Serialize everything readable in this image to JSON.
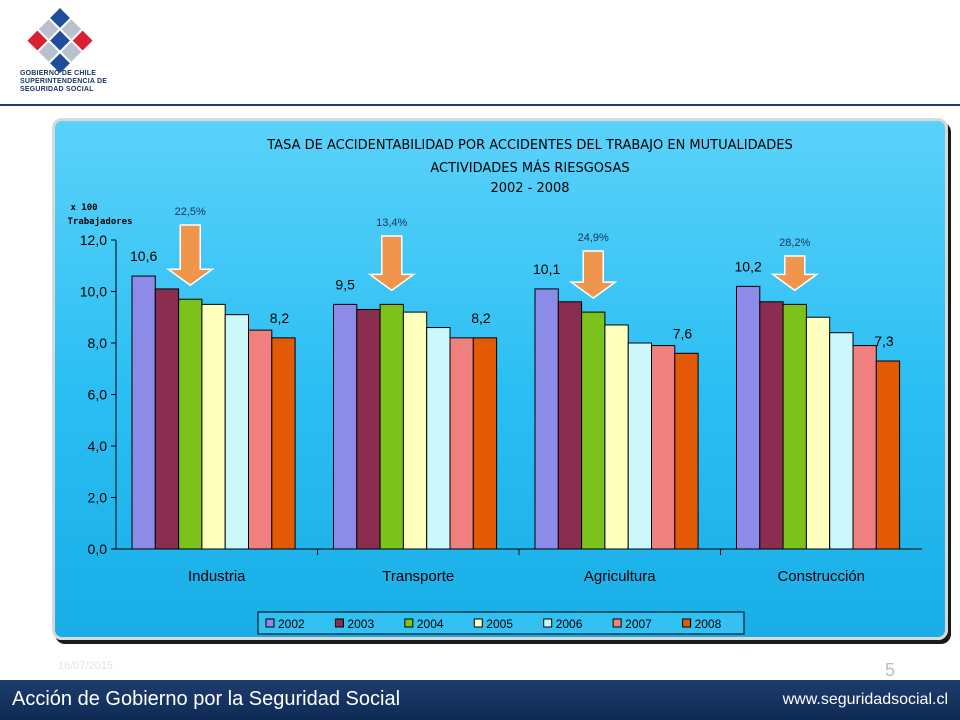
{
  "header": {
    "logo_lines": [
      "GOBIERNO DE CHILE",
      "SUPERINTENDENCIA DE",
      "SEGURIDAD SOCIAL"
    ]
  },
  "footer": {
    "date": "16/07/2015",
    "page_number": "5",
    "left_text": "Acción de Gobierno por la Seguridad Social",
    "right_text": "www.seguridadsocial.cl"
  },
  "colors": {
    "2002": "#8c8ce8",
    "2003": "#8b2d4f",
    "2004": "#7cc21a",
    "2005": "#ffffbe",
    "2006": "#ccf7fb",
    "2007": "#f08080",
    "2008": "#e25a05",
    "arrow": "#f0964c"
  },
  "chart_data": {
    "type": "bar",
    "title_lines": [
      "TASA DE ACCIDENTABILIDAD POR ACCIDENTES DEL TRABAJO EN MUTUALIDADES",
      "ACTIVIDADES MÁS RIESGOSAS",
      "2002 - 2008"
    ],
    "ylabel_lines": [
      "x 100",
      "Trabajadores"
    ],
    "categories": [
      "Industria",
      "Transporte",
      "Agricultura",
      "Construcción"
    ],
    "series": [
      {
        "name": "2002",
        "values": [
          10.6,
          9.5,
          10.1,
          10.2
        ]
      },
      {
        "name": "2003",
        "values": [
          10.1,
          9.3,
          9.6,
          9.6
        ]
      },
      {
        "name": "2004",
        "values": [
          9.7,
          9.5,
          9.2,
          9.5
        ]
      },
      {
        "name": "2005",
        "values": [
          9.5,
          9.2,
          8.7,
          9.0
        ]
      },
      {
        "name": "2006",
        "values": [
          9.1,
          8.6,
          8.0,
          8.4
        ]
      },
      {
        "name": "2007",
        "values": [
          8.5,
          8.2,
          7.9,
          7.9
        ]
      },
      {
        "name": "2008",
        "values": [
          8.2,
          8.2,
          7.6,
          7.3
        ]
      }
    ],
    "data_labels": {
      "first": [
        "10,6",
        "9,5",
        "10,1",
        "10,2"
      ],
      "last": [
        "8,2",
        "8,2",
        "7,6",
        "7,3"
      ]
    },
    "reduction_labels": [
      "22,5%",
      "13,4%",
      "24,9%",
      "28,2%"
    ],
    "ylim": [
      0,
      12
    ],
    "yticks": [
      "0,0",
      "2,0",
      "4,0",
      "6,0",
      "8,0",
      "10,0",
      "12,0"
    ],
    "legend_position": "bottom",
    "grid": false
  }
}
